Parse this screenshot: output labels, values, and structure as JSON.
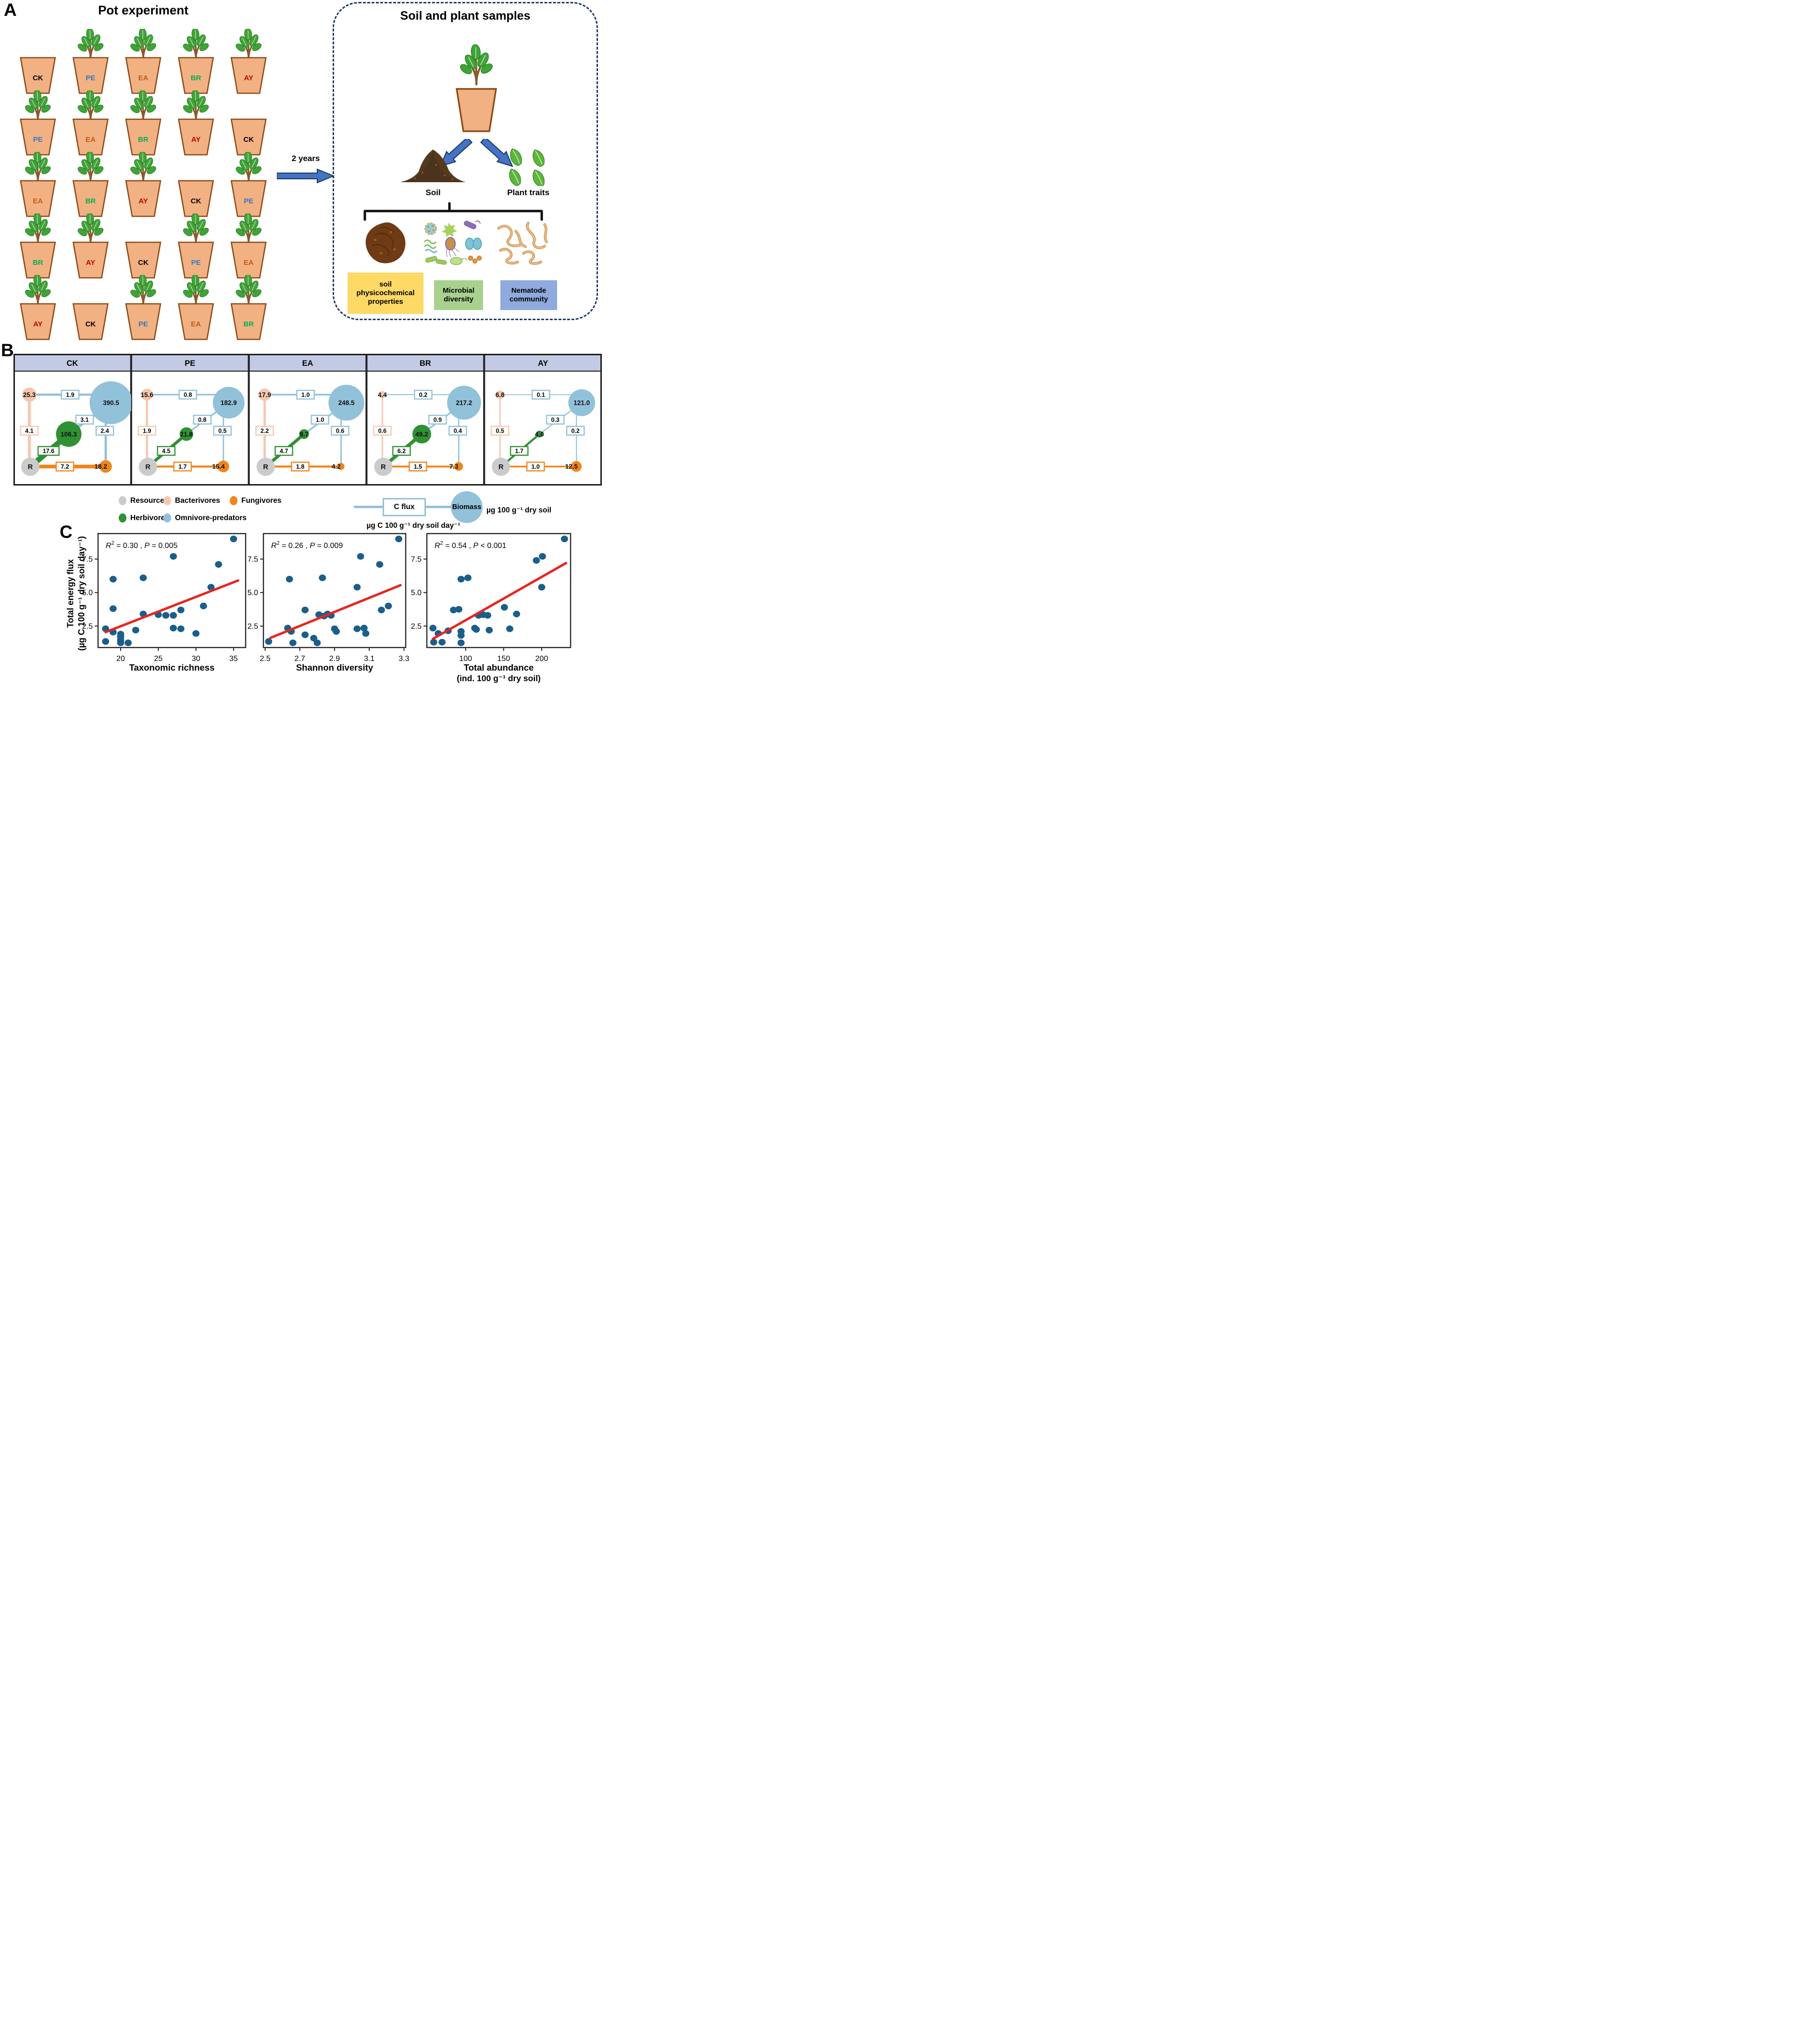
{
  "colors": {
    "accent_arrow": "#4472C4",
    "arrow_outline": "#17375E",
    "dashed_border": "#203864",
    "pot_fill": "#F2B183",
    "pot_border": "#8C4A17",
    "header_fill": "#C3CBE4",
    "table_border": "#1A1A1A",
    "point": "#1A5E8A",
    "trend": "#E8251F"
  },
  "panel_a": {
    "label": "A",
    "title": "Pot experiment",
    "arrow_label": "2 years",
    "treatments": [
      {
        "code": "CK",
        "color": "#000000",
        "has_plant": false
      },
      {
        "code": "PE",
        "color": "#3577C0",
        "has_plant": true
      },
      {
        "code": "EA",
        "color": "#C55A11",
        "has_plant": true
      },
      {
        "code": "BR",
        "color": "#00B050",
        "has_plant": true
      },
      {
        "code": "AY",
        "color": "#C00000",
        "has_plant": true
      }
    ],
    "grid_rows": [
      [
        "CK",
        "PE",
        "EA",
        "BR",
        "AY"
      ],
      [
        "PE",
        "EA",
        "BR",
        "AY",
        "CK"
      ],
      [
        "EA",
        "BR",
        "AY",
        "CK",
        "PE"
      ],
      [
        "BR",
        "AY",
        "CK",
        "PE",
        "EA"
      ],
      [
        "AY",
        "CK",
        "PE",
        "EA",
        "BR"
      ]
    ],
    "sample_box": {
      "title": "Soil and plant samples",
      "soil_label": "Soil",
      "plant_traits_label": "Plant traits",
      "categories": [
        {
          "label": "soil\nphysicochemical\nproperties",
          "color": "#FFD966"
        },
        {
          "label": "Microbial\ndiversity",
          "color": "#A9D18E"
        },
        {
          "label": "Nematode\ncommunity",
          "color": "#8FAADC"
        }
      ]
    }
  },
  "panel_b": {
    "label": "B",
    "node_colors": {
      "resources": "#CBCBCB",
      "bacterivores": "#F5C7AF",
      "fungivores": "#F0861B",
      "herbivores": "#2F9133",
      "omnivore_predators": "#92C1DA"
    },
    "resources_label": "R",
    "food_webs": [
      {
        "treatment": "CK",
        "biomass": {
          "bacterivores": "25.3",
          "herbivores": "106.3",
          "omnivore_predators": "390.5",
          "fungivores": "18.2"
        },
        "c_fluxes": {
          "bacterivores_to_omnivore_predators": "1.9",
          "herbivores_to_omnivore_predators": "3.1",
          "fungivores_to_omnivore_predators": "2.4",
          "resources_to_bacterivores": "4.1",
          "resources_to_herbivores": "17.6",
          "resources_to_fungivores": "7.2"
        }
      },
      {
        "treatment": "PE",
        "biomass": {
          "bacterivores": "15.6",
          "herbivores": "21.8",
          "omnivore_predators": "182.9",
          "fungivores": "15.4"
        },
        "c_fluxes": {
          "bacterivores_to_omnivore_predators": "0.8",
          "herbivores_to_omnivore_predators": "0.8",
          "fungivores_to_omnivore_predators": "0.5",
          "resources_to_bacterivores": "1.9",
          "resources_to_herbivores": "4.5",
          "resources_to_fungivores": "1.7"
        }
      },
      {
        "treatment": "EA",
        "biomass": {
          "bacterivores": "17.9",
          "herbivores": "9.7",
          "omnivore_predators": "248.5",
          "fungivores": "4.2"
        },
        "c_fluxes": {
          "bacterivores_to_omnivore_predators": "1.0",
          "herbivores_to_omnivore_predators": "1.0",
          "fungivores_to_omnivore_predators": "0.6",
          "resources_to_bacterivores": "2.2",
          "resources_to_herbivores": "4.7",
          "resources_to_fungivores": "1.8"
        }
      },
      {
        "treatment": "BR",
        "biomass": {
          "bacterivores": "4.4",
          "herbivores": "49.2",
          "omnivore_predators": "217.2",
          "fungivores": "7.3"
        },
        "c_fluxes": {
          "bacterivores_to_omnivore_predators": "0.2",
          "herbivores_to_omnivore_predators": "0.9",
          "fungivores_to_omnivore_predators": "0.4",
          "resources_to_bacterivores": "0.6",
          "resources_to_herbivores": "6.2",
          "resources_to_fungivores": "1.5"
        }
      },
      {
        "treatment": "AY",
        "biomass": {
          "bacterivores": "6.8",
          "herbivores": "4.0",
          "omnivore_predators": "121.0",
          "fungivores": "12.5"
        },
        "c_fluxes": {
          "bacterivores_to_omnivore_predators": "0.1",
          "herbivores_to_omnivore_predators": "0.3",
          "fungivores_to_omnivore_predators": "0.2",
          "resources_to_bacterivores": "0.5",
          "resources_to_herbivores": "1.7",
          "resources_to_fungivores": "1.0"
        }
      }
    ],
    "legend": {
      "items": [
        {
          "label": "Resources",
          "key": "resources"
        },
        {
          "label": "Bacterivores",
          "key": "bacterivores"
        },
        {
          "label": "Fungivores",
          "key": "fungivores"
        },
        {
          "label": "Herbivores",
          "key": "herbivores"
        },
        {
          "label": "Omnivore-predators",
          "key": "omnivore_predators"
        }
      ],
      "flux_box_label": "C flux",
      "flux_unit": "µg C 100 g⁻¹ dry soil day⁻¹",
      "biomass_label": "Biomass",
      "biomass_unit": "µg 100 g⁻¹ dry soil"
    }
  },
  "panel_c": {
    "label": "C",
    "y_axis": {
      "title_line1": "Total energy flux",
      "title_line2": "(µg C 100 g⁻¹ dry soil day⁻¹)"
    }
  },
  "chart_data": [
    {
      "type": "scatter",
      "xlabel": "Taxonomic richness",
      "ylabel": "Total energy flux (µg C 100 g⁻¹ dry soil day⁻¹)",
      "annotation": {
        "r2": "0.30",
        "p_op": "=",
        "p_value": "0.005"
      },
      "xticks": [
        "20",
        "25",
        "30",
        "35"
      ],
      "xlim": [
        17.0,
        36.6
      ],
      "yticks": [
        "2.5",
        "5.0",
        "7.5"
      ],
      "ylim": [
        0.9,
        9.4
      ],
      "grid": false,
      "legend_position": "none",
      "points": [
        [
          18,
          2.3
        ],
        [
          18,
          1.35
        ],
        [
          19,
          6.0
        ],
        [
          19,
          3.8
        ],
        [
          19,
          2.05
        ],
        [
          20,
          1.9
        ],
        [
          20,
          1.7
        ],
        [
          20,
          1.45
        ],
        [
          20,
          1.25
        ],
        [
          21,
          1.25
        ],
        [
          22,
          2.2
        ],
        [
          23,
          6.1
        ],
        [
          23,
          3.4
        ],
        [
          25,
          3.35
        ],
        [
          26,
          3.3
        ],
        [
          27,
          7.7
        ],
        [
          27,
          3.3
        ],
        [
          27,
          2.35
        ],
        [
          28,
          3.7
        ],
        [
          28,
          2.3
        ],
        [
          30,
          1.95
        ],
        [
          31,
          4.0
        ],
        [
          32,
          5.4
        ],
        [
          33,
          7.1
        ],
        [
          35,
          9.0
        ]
      ],
      "trend_line": {
        "x1": 18,
        "y1": 2.05,
        "x2": 35.6,
        "y2": 5.9,
        "color": "#E8251F"
      }
    },
    {
      "type": "scatter",
      "xlabel": "Shannon diversity",
      "ylabel": "Total energy flux (µg C 100 g⁻¹ dry soil day⁻¹)",
      "annotation": {
        "r2": "0.26",
        "p_op": "=",
        "p_value": "0.009"
      },
      "xticks": [
        "2.5",
        "2.7",
        "2.9",
        "3.1",
        "3.3"
      ],
      "xlim": [
        2.49,
        3.31
      ],
      "yticks": [
        "2.5",
        "5.0",
        "7.5"
      ],
      "ylim": [
        0.9,
        9.4
      ],
      "grid": false,
      "legend_position": "none",
      "points": [
        [
          2.52,
          1.35
        ],
        [
          2.63,
          2.35
        ],
        [
          2.64,
          6.0
        ],
        [
          2.65,
          2.1
        ],
        [
          2.66,
          1.25
        ],
        [
          2.73,
          3.7
        ],
        [
          2.73,
          1.85
        ],
        [
          2.78,
          1.6
        ],
        [
          2.8,
          1.25
        ],
        [
          2.81,
          3.35
        ],
        [
          2.83,
          6.1
        ],
        [
          2.84,
          3.25
        ],
        [
          2.86,
          3.4
        ],
        [
          2.88,
          3.3
        ],
        [
          2.9,
          2.3
        ],
        [
          2.91,
          2.1
        ],
        [
          3.03,
          5.4
        ],
        [
          3.03,
          2.3
        ],
        [
          3.05,
          7.7
        ],
        [
          3.07,
          2.35
        ],
        [
          3.08,
          1.95
        ],
        [
          3.16,
          7.1
        ],
        [
          3.17,
          3.7
        ],
        [
          3.21,
          4.0
        ],
        [
          3.27,
          9.0
        ]
      ],
      "trend_line": {
        "x1": 2.53,
        "y1": 1.62,
        "x2": 3.28,
        "y2": 5.55,
        "color": "#E8251F"
      }
    },
    {
      "type": "scatter",
      "xlabel": "Total abundance",
      "xlabel2": "(ind. 100 g⁻¹ dry soil)",
      "ylabel": "Total energy flux (µg C 100 g⁻¹ dry soil day⁻¹)",
      "annotation": {
        "r2": "0.54",
        "p_op": "<",
        "p_value": "0.001"
      },
      "xticks": [
        "100",
        "150",
        "200"
      ],
      "xlim": [
        49,
        238
      ],
      "yticks": [
        "2.5",
        "5.0",
        "7.5"
      ],
      "ylim": [
        0.9,
        9.4
      ],
      "grid": false,
      "legend_position": "none",
      "points": [
        [
          57,
          2.35
        ],
        [
          58,
          1.3
        ],
        [
          64,
          1.95
        ],
        [
          69,
          1.3
        ],
        [
          77,
          2.15
        ],
        [
          84,
          3.7
        ],
        [
          91,
          3.75
        ],
        [
          94,
          6.0
        ],
        [
          94,
          2.1
        ],
        [
          94,
          1.8
        ],
        [
          94,
          1.25
        ],
        [
          103,
          6.1
        ],
        [
          112,
          2.35
        ],
        [
          114,
          2.25
        ],
        [
          117,
          3.3
        ],
        [
          123,
          3.35
        ],
        [
          129,
          3.3
        ],
        [
          131,
          2.2
        ],
        [
          151,
          3.9
        ],
        [
          158,
          2.3
        ],
        [
          167,
          3.4
        ],
        [
          193,
          7.4
        ],
        [
          200,
          5.4
        ],
        [
          201,
          7.7
        ],
        [
          230,
          9.0
        ]
      ],
      "trend_line": {
        "x1": 57,
        "y1": 1.55,
        "x2": 232,
        "y2": 7.2,
        "color": "#E8251F"
      }
    }
  ]
}
